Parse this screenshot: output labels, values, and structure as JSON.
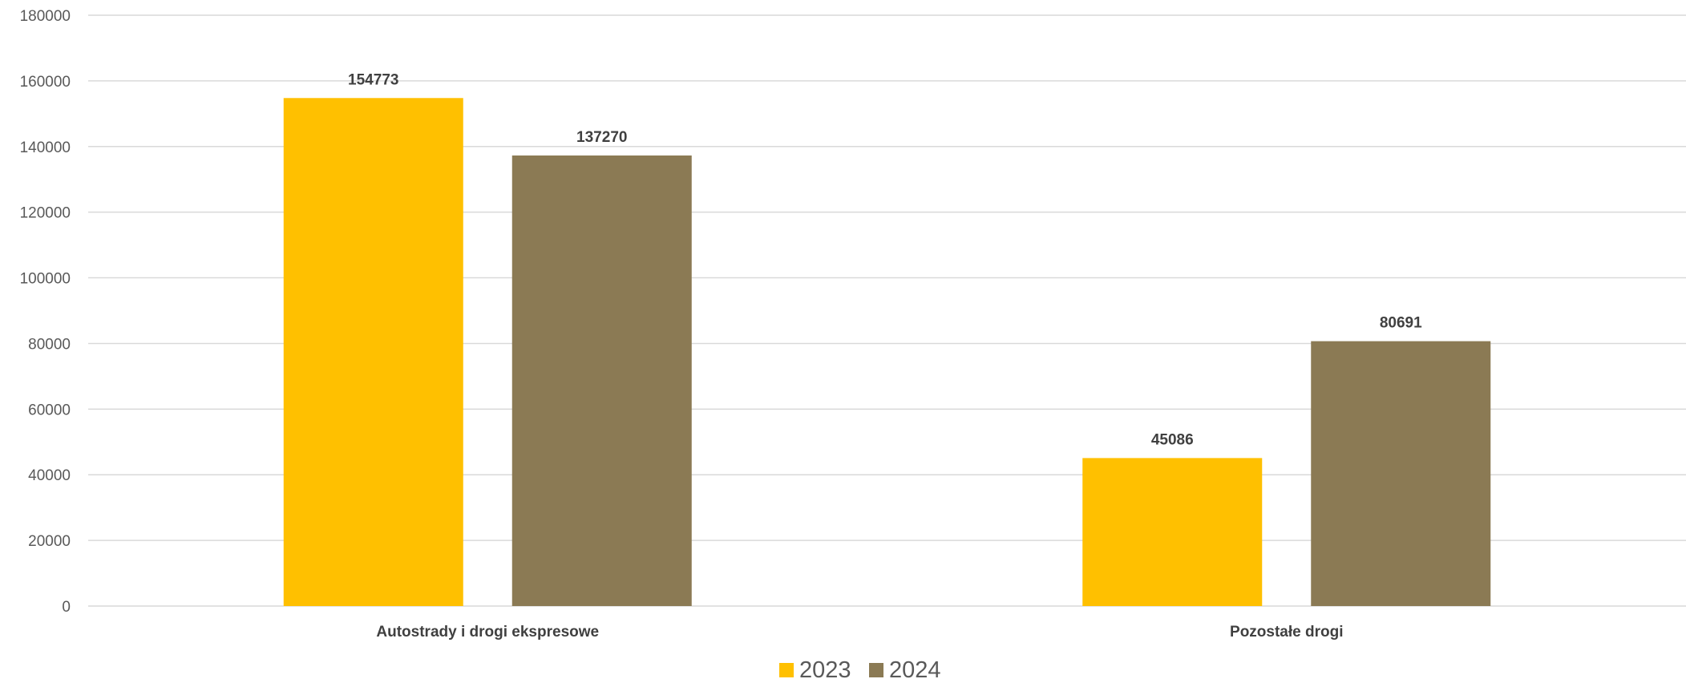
{
  "chart_data": {
    "type": "bar",
    "categories": [
      "Autostrady i drogi ekspresowe",
      "Pozostałe drogi"
    ],
    "series": [
      {
        "name": "2023",
        "values": [
          154773,
          45086
        ],
        "color": "#FFC000"
      },
      {
        "name": "2024",
        "values": [
          137270,
          80691
        ],
        "color": "#8B7A54"
      }
    ],
    "ylim": [
      0,
      180000
    ],
    "y_ticks": [
      0,
      20000,
      40000,
      60000,
      80000,
      100000,
      120000,
      140000,
      160000,
      180000
    ],
    "grid": true,
    "legend_position": "bottom",
    "data_labels": true
  }
}
